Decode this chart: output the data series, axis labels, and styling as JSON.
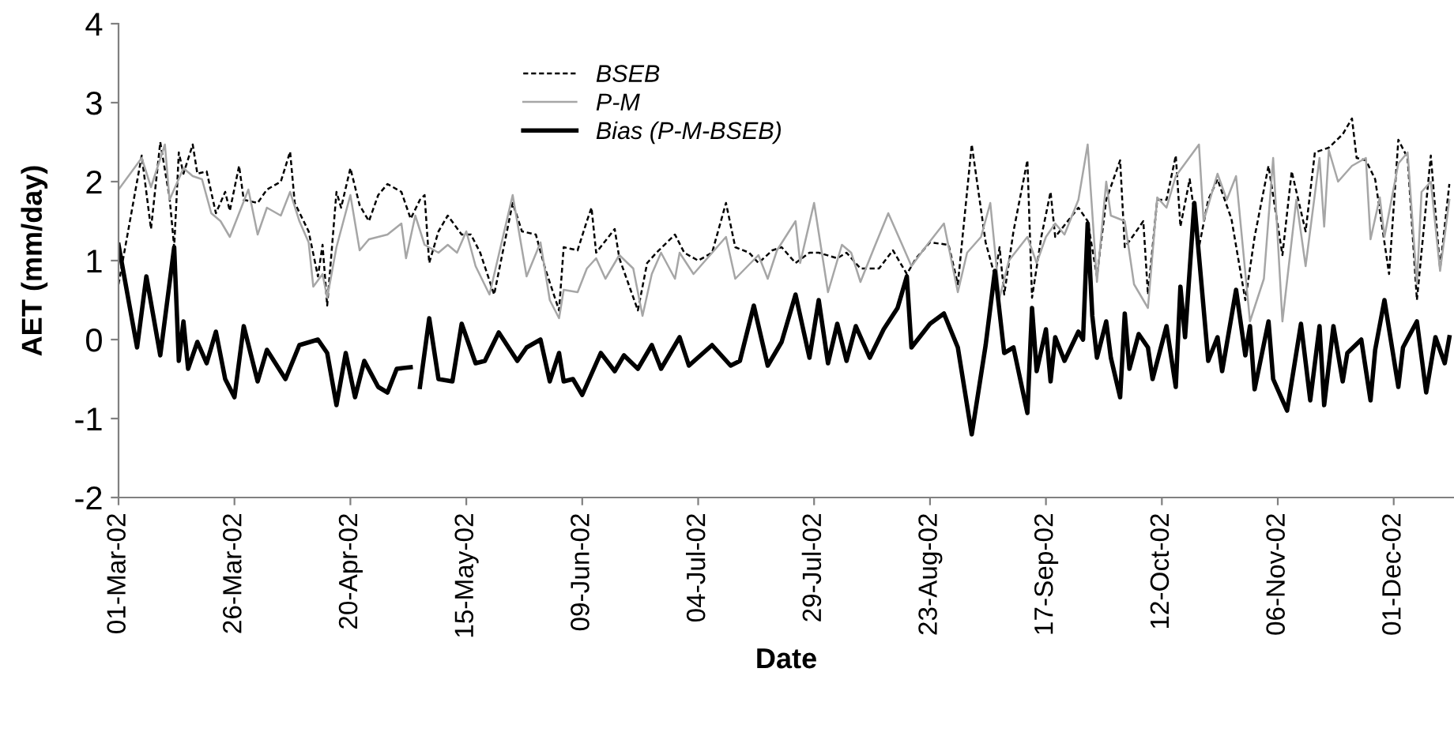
{
  "chart_data": {
    "type": "line",
    "xlabel": "Date",
    "ylabel": "AET (mm/day)",
    "xlim": [
      "2002-03-01",
      "2002-12-14"
    ],
    "ylim": [
      -2,
      4
    ],
    "yticks": [
      -2,
      -1,
      0,
      1,
      2,
      3,
      4
    ],
    "xticks": [
      {
        "value": "2002-03-01",
        "label": "01-Mar-02"
      },
      {
        "value": "2002-03-26",
        "label": "26-Mar-02"
      },
      {
        "value": "2002-04-20",
        "label": "20-Apr-02"
      },
      {
        "value": "2002-05-15",
        "label": "15-May-02"
      },
      {
        "value": "2002-06-09",
        "label": "09-Jun-02"
      },
      {
        "value": "2002-07-04",
        "label": "04-Jul-02"
      },
      {
        "value": "2002-07-29",
        "label": "29-Jul-02"
      },
      {
        "value": "2002-08-23",
        "label": "23-Aug-02"
      },
      {
        "value": "2002-09-17",
        "label": "17-Sep-02"
      },
      {
        "value": "2002-10-12",
        "label": "12-Oct-02"
      },
      {
        "value": "2002-11-06",
        "label": "06-Nov-02"
      },
      {
        "value": "2002-12-01",
        "label": "01-Dec-02"
      }
    ],
    "grid": false,
    "legend": "top",
    "marker": "none",
    "series": [
      {
        "name": "BSEB",
        "color": "#000000",
        "line_style": "dashed",
        "x": [
          "2002-03-01",
          "2002-03-06",
          "2002-03-08",
          "2002-03-10",
          "2002-03-12",
          "2002-03-13",
          "2002-03-14",
          "2002-03-15",
          "2002-03-17",
          "2002-03-18",
          "2002-03-20",
          "2002-03-22",
          "2002-03-24",
          "2002-03-25",
          "2002-03-27",
          "2002-03-28",
          "2002-03-31",
          "2002-04-02",
          "2002-04-05",
          "2002-04-07",
          "2002-04-08",
          "2002-04-11",
          "2002-04-13",
          "2002-04-14",
          "2002-04-15",
          "2002-04-17",
          "2002-04-18",
          "2002-04-20",
          "2002-04-22",
          "2002-04-24",
          "2002-04-26",
          "2002-04-28",
          "2002-05-01",
          "2002-05-03",
          "2002-05-05",
          "2002-05-06",
          "2002-05-07",
          "2002-05-09",
          "2002-05-11",
          "2002-05-14",
          "2002-05-16",
          "2002-05-18",
          "2002-05-21",
          "2002-05-25",
          "2002-05-27",
          "2002-05-30",
          "2002-06-01",
          "2002-06-04",
          "2002-06-05",
          "2002-06-08",
          "2002-06-10",
          "2002-06-11",
          "2002-06-12",
          "2002-06-16",
          "2002-06-17",
          "2002-06-21",
          "2002-06-23",
          "2002-06-25",
          "2002-06-29",
          "2002-07-01",
          "2002-07-04",
          "2002-07-07",
          "2002-07-10",
          "2002-07-12",
          "2002-07-15",
          "2002-07-17",
          "2002-07-20",
          "2002-07-22",
          "2002-07-25",
          "2002-07-28",
          "2002-07-30",
          "2002-08-03",
          "2002-08-05",
          "2002-08-08",
          "2002-08-12",
          "2002-08-15",
          "2002-08-18",
          "2002-08-20",
          "2002-08-23",
          "2002-08-27",
          "2002-08-29",
          "2002-09-01",
          "2002-09-04",
          "2002-09-06",
          "2002-09-07",
          "2002-09-08",
          "2002-09-10",
          "2002-09-13",
          "2002-09-14",
          "2002-09-16",
          "2002-09-18",
          "2002-09-19",
          "2002-09-24",
          "2002-09-26",
          "2002-09-28",
          "2002-09-30",
          "2002-10-03",
          "2002-10-04",
          "2002-10-06",
          "2002-10-08",
          "2002-10-09",
          "2002-10-11",
          "2002-10-13",
          "2002-10-15",
          "2002-10-16",
          "2002-10-18",
          "2002-10-20",
          "2002-10-22",
          "2002-10-24",
          "2002-10-27",
          "2002-10-30",
          "2002-11-01",
          "2002-11-04",
          "2002-11-07",
          "2002-11-09",
          "2002-11-12",
          "2002-11-14",
          "2002-11-17",
          "2002-11-20",
          "2002-11-22",
          "2002-11-23",
          "2002-11-25",
          "2002-11-27",
          "2002-11-30",
          "2002-12-02",
          "2002-12-04",
          "2002-12-06",
          "2002-12-09",
          "2002-12-11",
          "2002-12-13"
        ],
        "values": [
          0.7,
          2.33,
          1.4,
          2.5,
          1.8,
          1.17,
          2.37,
          2.1,
          2.47,
          2.1,
          2.13,
          1.6,
          1.87,
          1.63,
          2.2,
          1.77,
          1.73,
          1.9,
          2.0,
          2.38,
          1.73,
          1.37,
          0.8,
          1.2,
          0.43,
          1.87,
          1.67,
          2.17,
          1.7,
          1.5,
          1.83,
          1.97,
          1.87,
          1.53,
          1.77,
          1.83,
          0.97,
          1.37,
          1.57,
          1.33,
          1.33,
          1.1,
          0.57,
          1.73,
          1.37,
          1.33,
          0.9,
          0.37,
          1.17,
          1.13,
          1.5,
          1.67,
          1.1,
          1.4,
          1.03,
          0.37,
          0.97,
          1.1,
          1.33,
          1.1,
          1.0,
          1.1,
          1.73,
          1.17,
          1.1,
          0.97,
          1.13,
          1.17,
          0.97,
          1.1,
          1.1,
          1.03,
          1.1,
          0.9,
          0.9,
          1.13,
          0.83,
          1.03,
          1.23,
          1.2,
          0.7,
          2.47,
          1.23,
          0.8,
          1.17,
          0.57,
          1.37,
          2.27,
          0.53,
          1.3,
          1.87,
          1.3,
          1.67,
          1.5,
          0.8,
          1.77,
          2.27,
          1.17,
          1.33,
          1.5,
          0.57,
          1.77,
          1.77,
          2.33,
          1.43,
          2.03,
          1.17,
          1.77,
          2.03,
          1.53,
          0.5,
          1.3,
          2.2,
          1.07,
          2.13,
          1.37,
          2.37,
          2.43,
          2.6,
          2.8,
          2.3,
          2.27,
          2.03,
          0.83,
          2.53,
          2.3,
          0.5,
          2.33,
          0.9,
          1.97
        ]
      },
      {
        "name": "P-M",
        "color": "#a6a6a6",
        "line_style": "solid",
        "x": [
          "2002-03-01",
          "2002-03-06",
          "2002-03-08",
          "2002-03-11",
          "2002-03-12",
          "2002-03-15",
          "2002-03-17",
          "2002-03-19",
          "2002-03-21",
          "2002-03-23",
          "2002-03-25",
          "2002-03-29",
          "2002-03-31",
          "2002-04-02",
          "2002-04-05",
          "2002-04-07",
          "2002-04-09",
          "2002-04-11",
          "2002-04-12",
          "2002-04-14",
          "2002-04-15",
          "2002-04-17",
          "2002-04-20",
          "2002-04-22",
          "2002-04-24",
          "2002-04-28",
          "2002-05-01",
          "2002-05-02",
          "2002-05-04",
          "2002-05-06",
          "2002-05-09",
          "2002-05-11",
          "2002-05-13",
          "2002-05-15",
          "2002-05-17",
          "2002-05-20",
          "2002-05-25",
          "2002-05-28",
          "2002-05-31",
          "2002-06-02",
          "2002-06-04",
          "2002-06-05",
          "2002-06-08",
          "2002-06-10",
          "2002-06-12",
          "2002-06-14",
          "2002-06-17",
          "2002-06-20",
          "2002-06-22",
          "2002-06-24",
          "2002-06-26",
          "2002-06-29",
          "2002-06-30",
          "2002-07-03",
          "2002-07-10",
          "2002-07-12",
          "2002-07-17",
          "2002-07-19",
          "2002-07-21",
          "2002-07-25",
          "2002-07-26",
          "2002-07-29",
          "2002-08-01",
          "2002-08-04",
          "2002-08-06",
          "2002-08-08",
          "2002-08-11",
          "2002-08-14",
          "2002-08-17",
          "2002-08-19",
          "2002-08-22",
          "2002-08-26",
          "2002-08-29",
          "2002-08-31",
          "2002-09-03",
          "2002-09-05",
          "2002-09-07",
          "2002-09-09",
          "2002-09-13",
          "2002-09-15",
          "2002-09-17",
          "2002-09-19",
          "2002-09-21",
          "2002-09-24",
          "2002-09-26",
          "2002-09-28",
          "2002-09-30",
          "2002-10-01",
          "2002-10-04",
          "2002-10-06",
          "2002-10-09",
          "2002-10-11",
          "2002-10-13",
          "2002-10-15",
          "2002-10-20",
          "2002-10-21",
          "2002-10-24",
          "2002-10-26",
          "2002-10-28",
          "2002-10-31",
          "2002-11-03",
          "2002-11-05",
          "2002-11-07",
          "2002-11-10",
          "2002-11-12",
          "2002-11-15",
          "2002-11-16",
          "2002-11-17",
          "2002-11-19",
          "2002-11-22",
          "2002-11-25",
          "2002-11-26",
          "2002-11-28",
          "2002-11-29",
          "2002-12-02",
          "2002-12-04",
          "2002-12-06",
          "2002-12-07",
          "2002-12-09",
          "2002-12-11",
          "2002-12-13"
        ],
        "values": [
          1.9,
          2.3,
          1.93,
          2.47,
          1.77,
          2.17,
          2.07,
          2.03,
          1.6,
          1.5,
          1.3,
          1.9,
          1.33,
          1.67,
          1.57,
          1.87,
          1.5,
          1.23,
          0.67,
          0.83,
          0.53,
          1.17,
          1.83,
          1.13,
          1.27,
          1.33,
          1.47,
          1.03,
          1.57,
          1.2,
          1.1,
          1.2,
          1.1,
          1.37,
          0.93,
          0.57,
          1.83,
          0.8,
          1.23,
          0.5,
          0.27,
          0.63,
          0.6,
          0.9,
          1.03,
          0.77,
          1.07,
          0.9,
          0.3,
          0.83,
          1.1,
          0.77,
          1.1,
          0.83,
          1.3,
          0.77,
          1.07,
          0.77,
          1.13,
          1.5,
          0.97,
          1.73,
          0.6,
          1.2,
          1.1,
          0.73,
          1.17,
          1.6,
          1.2,
          0.93,
          1.17,
          1.47,
          0.6,
          1.1,
          1.3,
          1.73,
          0.53,
          1.0,
          1.3,
          0.97,
          1.3,
          1.47,
          1.33,
          1.77,
          2.47,
          0.73,
          2.0,
          1.57,
          1.5,
          0.7,
          0.4,
          1.8,
          1.67,
          2.07,
          2.47,
          1.5,
          2.1,
          1.77,
          2.07,
          0.23,
          0.77,
          2.3,
          0.23,
          1.77,
          0.93,
          2.3,
          1.43,
          2.4,
          2.0,
          2.2,
          2.3,
          1.27,
          1.8,
          1.3,
          2.23,
          2.37,
          0.7,
          1.87,
          2.0,
          0.87,
          1.77
        ]
      },
      {
        "name": "Bias (P-M-BSEB)",
        "color": "#000000",
        "line_style": "solid",
        "x": [
          "2002-03-01",
          "2002-03-05",
          "2002-03-07",
          "2002-03-10",
          "2002-03-13",
          "2002-03-14",
          "2002-03-15",
          "2002-03-16",
          "2002-03-18",
          "2002-03-20",
          "2002-03-22",
          "2002-03-24",
          "2002-03-26",
          "2002-03-28",
          "2002-03-31",
          "2002-04-02",
          "2002-04-06",
          "2002-04-09",
          "2002-04-13",
          "2002-04-15",
          "2002-04-17",
          "2002-04-19",
          "2002-04-21",
          "2002-04-23",
          "2002-04-26",
          "2002-04-28",
          "2002-04-30",
          "2002-05-03",
          "2002-05-04",
          "2002-05-05",
          "2002-05-07",
          "2002-05-09",
          "2002-05-12",
          "2002-05-14",
          "2002-05-17",
          "2002-05-19",
          "2002-05-22",
          "2002-05-26",
          "2002-05-28",
          "2002-05-31",
          "2002-06-02",
          "2002-06-04",
          "2002-06-05",
          "2002-06-07",
          "2002-06-09",
          "2002-06-13",
          "2002-06-16",
          "2002-06-18",
          "2002-06-21",
          "2002-06-24",
          "2002-06-26",
          "2002-06-28",
          "2002-06-30",
          "2002-07-02",
          "2002-07-07",
          "2002-07-11",
          "2002-07-13",
          "2002-07-16",
          "2002-07-19",
          "2002-07-22",
          "2002-07-25",
          "2002-07-28",
          "2002-07-30",
          "2002-08-01",
          "2002-08-03",
          "2002-08-05",
          "2002-08-07",
          "2002-08-10",
          "2002-08-13",
          "2002-08-16",
          "2002-08-18",
          "2002-08-19",
          "2002-08-23",
          "2002-08-26",
          "2002-08-29",
          "2002-09-01",
          "2002-09-04",
          "2002-09-06",
          "2002-09-08",
          "2002-09-10",
          "2002-09-13",
          "2002-09-14",
          "2002-09-15",
          "2002-09-17",
          "2002-09-18",
          "2002-09-19",
          "2002-09-21",
          "2002-09-24",
          "2002-09-25",
          "2002-09-26",
          "2002-09-27",
          "2002-09-28",
          "2002-09-30",
          "2002-10-01",
          "2002-10-03",
          "2002-10-04",
          "2002-10-05",
          "2002-10-07",
          "2002-10-09",
          "2002-10-10",
          "2002-10-13",
          "2002-10-15",
          "2002-10-16",
          "2002-10-17",
          "2002-10-19",
          "2002-10-22",
          "2002-10-24",
          "2002-10-25",
          "2002-10-28",
          "2002-10-30",
          "2002-10-31",
          "2002-11-01",
          "2002-11-04",
          "2002-11-05",
          "2002-11-08",
          "2002-11-11",
          "2002-11-13",
          "2002-11-15",
          "2002-11-16",
          "2002-11-18",
          "2002-11-20",
          "2002-11-21",
          "2002-11-24",
          "2002-11-26",
          "2002-11-27",
          "2002-11-29",
          "2002-12-02",
          "2002-12-03",
          "2002-12-06",
          "2002-12-08",
          "2002-12-10",
          "2002-12-12",
          "2002-12-13"
        ],
        "values": [
          1.2,
          -0.1,
          0.8,
          -0.2,
          1.17,
          -0.27,
          0.23,
          -0.37,
          -0.03,
          -0.3,
          0.1,
          -0.5,
          -0.73,
          0.17,
          -0.53,
          -0.13,
          -0.5,
          -0.07,
          0.0,
          -0.17,
          -0.83,
          -0.17,
          -0.73,
          -0.27,
          -0.6,
          -0.67,
          -0.37,
          -0.35,
          null,
          -0.6,
          0.27,
          -0.5,
          -0.53,
          0.2,
          -0.3,
          -0.27,
          0.09,
          -0.27,
          -0.1,
          0.0,
          -0.53,
          -0.17,
          -0.53,
          -0.5,
          -0.7,
          -0.17,
          -0.4,
          -0.2,
          -0.37,
          -0.07,
          -0.37,
          -0.17,
          0.03,
          -0.33,
          -0.07,
          -0.33,
          -0.27,
          0.43,
          -0.33,
          -0.03,
          0.57,
          -0.23,
          0.5,
          -0.3,
          0.2,
          -0.27,
          0.17,
          -0.23,
          0.13,
          0.4,
          0.8,
          -0.1,
          0.2,
          0.33,
          -0.1,
          -1.2,
          -0.07,
          0.87,
          -0.17,
          -0.1,
          -0.93,
          0.4,
          -0.4,
          0.13,
          -0.53,
          0.03,
          -0.27,
          0.1,
          0.0,
          1.47,
          0.3,
          -0.23,
          0.23,
          -0.23,
          -0.73,
          0.33,
          -0.37,
          0.07,
          -0.1,
          -0.5,
          0.17,
          -0.6,
          0.67,
          0.03,
          1.73,
          -0.27,
          0.03,
          -0.4,
          0.63,
          -0.2,
          0.17,
          -0.63,
          0.23,
          -0.5,
          -0.9,
          0.2,
          -0.77,
          0.17,
          -0.83,
          0.17,
          -0.53,
          -0.17,
          0.0,
          -0.77,
          -0.13,
          0.5,
          -0.6,
          -0.1,
          0.23,
          -0.67,
          0.03,
          -0.3,
          0.03
        ]
      }
    ]
  }
}
